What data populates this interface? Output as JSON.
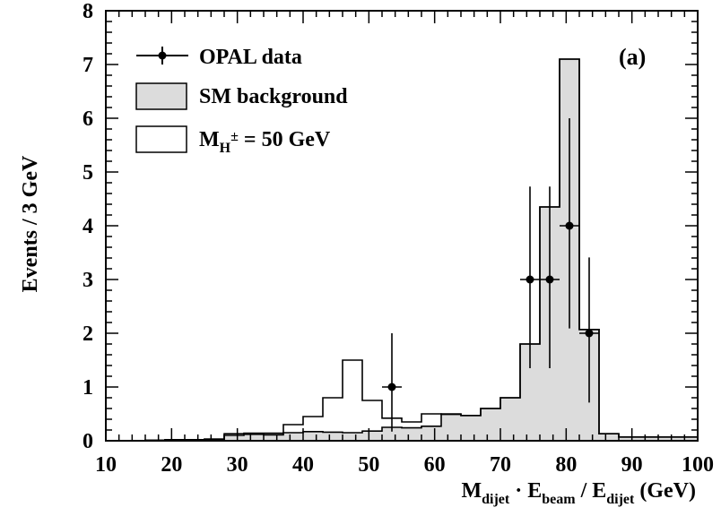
{
  "chart_data": {
    "type": "histogram",
    "panel_label": "(a)",
    "xlabel": {
      "main": "M",
      "sub1": "dijet",
      "dot": " · E",
      "sub2": "beam",
      "slash": " / E",
      "sub3": "dijet",
      "unit": " (GeV)"
    },
    "ylabel": "Events / 3 GeV",
    "xlim": [
      10,
      100
    ],
    "ylim": [
      0,
      8
    ],
    "xticks": [
      10,
      20,
      30,
      40,
      50,
      60,
      70,
      80,
      90,
      100
    ],
    "yticks": [
      0,
      1,
      2,
      3,
      4,
      5,
      6,
      7,
      8
    ],
    "bin_edges": [
      10,
      13,
      16,
      19,
      22,
      25,
      28,
      31,
      34,
      37,
      40,
      43,
      46,
      49,
      52,
      55,
      58,
      61,
      64,
      67,
      70,
      73,
      76,
      79,
      82,
      85,
      88,
      91,
      94,
      97,
      100
    ],
    "series": [
      {
        "name": "SM background",
        "style": "filled",
        "fill": "#dcdcdc",
        "values": [
          0.0,
          0.0,
          0.01,
          0.02,
          0.02,
          0.03,
          0.1,
          0.12,
          0.11,
          0.15,
          0.17,
          0.16,
          0.15,
          0.18,
          0.25,
          0.24,
          0.27,
          0.5,
          0.47,
          0.6,
          0.8,
          1.8,
          4.35,
          7.1,
          2.07,
          0.13,
          0.07,
          0.07,
          0.07,
          0.07
        ]
      },
      {
        "name_main": "M",
        "name_sub": "H",
        "name_sup": "±",
        "name_rest": " = 50 GeV",
        "style": "outline",
        "values": [
          0.0,
          0.0,
          0.01,
          0.02,
          0.02,
          0.03,
          0.13,
          0.14,
          0.14,
          0.3,
          0.45,
          0.8,
          1.5,
          0.75,
          0.42,
          0.35,
          0.5,
          0.49,
          0.47,
          0.6,
          0.8,
          1.8,
          4.35,
          7.1,
          2.07,
          0.13,
          0.07,
          0.07,
          0.07,
          0.07
        ]
      },
      {
        "name": "OPAL data",
        "style": "points",
        "x": [
          53.5,
          74.5,
          77.5,
          80.5,
          83.5
        ],
        "y": [
          1,
          3,
          3,
          4,
          2
        ],
        "xerr": 1.5,
        "yerr_low": [
          0.83,
          1.65,
          1.65,
          1.91,
          1.29
        ],
        "yerr_high": [
          1.0,
          1.73,
          1.73,
          2.0,
          1.41
        ]
      }
    ]
  }
}
